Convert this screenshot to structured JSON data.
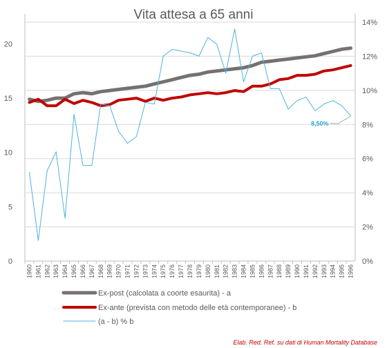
{
  "chart_data": {
    "type": "line",
    "title": "Vita attesa a 65 anni",
    "x": [
      1960,
      1961,
      1962,
      1963,
      1964,
      1965,
      1966,
      1967,
      1968,
      1969,
      1970,
      1971,
      1972,
      1973,
      1974,
      1975,
      1976,
      1977,
      1978,
      1979,
      1980,
      1981,
      1982,
      1983,
      1984,
      1985,
      1986,
      1987,
      1988,
      1989,
      1990,
      1991,
      1992,
      1993,
      1994,
      1995,
      1996
    ],
    "y_left_lim": [
      0,
      22
    ],
    "y_left_ticks": [
      0,
      5,
      10,
      15,
      20
    ],
    "y_right_lim": [
      0,
      14
    ],
    "y_right_ticks": [
      "0%",
      "2%",
      "4%",
      "6%",
      "8%",
      "10%",
      "12%",
      "14%"
    ],
    "series": [
      {
        "name": "Ex-post (calcolata a coorte esaurita) - a",
        "axis": "left",
        "color": "#767171",
        "values": [
          14.9,
          14.7,
          14.8,
          15.0,
          15.0,
          15.4,
          15.5,
          15.4,
          15.6,
          15.7,
          15.8,
          15.9,
          16.0,
          16.1,
          16.3,
          16.5,
          16.7,
          16.9,
          17.1,
          17.2,
          17.4,
          17.5,
          17.6,
          17.7,
          17.8,
          18.0,
          18.3,
          18.4,
          18.5,
          18.6,
          18.7,
          18.8,
          18.9,
          19.1,
          19.3,
          19.5,
          19.6
        ]
      },
      {
        "name": "Ex-ante (prevista con metodo delle età contemporanee) - b",
        "axis": "left",
        "color": "#c00000",
        "values": [
          14.6,
          14.9,
          14.3,
          14.3,
          14.9,
          14.5,
          14.8,
          14.6,
          14.3,
          14.4,
          14.8,
          14.9,
          15.0,
          14.7,
          15.0,
          14.8,
          15.0,
          15.1,
          15.3,
          15.4,
          15.5,
          15.4,
          15.5,
          15.7,
          15.6,
          16.1,
          16.1,
          16.3,
          16.7,
          16.8,
          17.1,
          17.1,
          17.2,
          17.5,
          17.6,
          17.8,
          18.0
        ]
      },
      {
        "name": "(a - b) % b",
        "axis": "right",
        "color": "#4bb3e0",
        "values": [
          5.2,
          1.2,
          5.3,
          6.4,
          2.5,
          8.6,
          5.6,
          5.6,
          9.2,
          9.1,
          7.6,
          6.9,
          7.3,
          9.3,
          9.2,
          12.0,
          12.4,
          12.3,
          12.2,
          12.0,
          13.1,
          12.7,
          11.0,
          13.6,
          10.5,
          12.0,
          12.2,
          10.1,
          10.1,
          8.9,
          9.4,
          9.6,
          8.8,
          9.2,
          9.4,
          9.1,
          8.5
        ]
      }
    ],
    "annotation": {
      "text": "8,50%",
      "x": 1996,
      "value": 8.5
    },
    "gridlines": "horizontal",
    "legend_position": "bottom"
  },
  "source": "Elab. Red. Ref. su dati di Human Mortality Database"
}
